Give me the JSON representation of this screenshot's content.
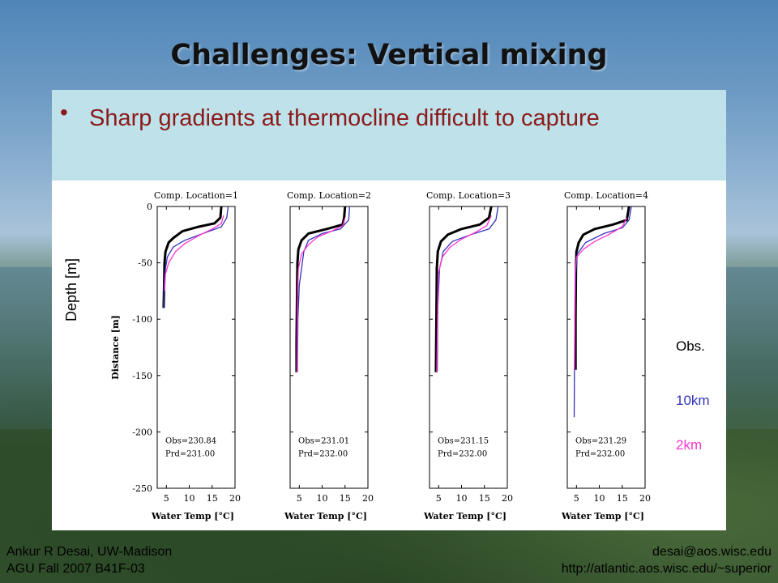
{
  "slide": {
    "title": "Challenges: Vertical mixing",
    "bullet": "Sharp gradients at thermocline difficult to capture",
    "depth_label": "Depth [m]",
    "legend": {
      "obs": "Obs.",
      "km10": "10km",
      "km2": "2km"
    },
    "footer_left": [
      "Ankur R Desai, UW-Madison",
      "AGU Fall 2007 B41F-03"
    ],
    "footer_right": [
      "desai@aos.wisc.edu",
      "http://atlantic.aos.wisc.edu/~superior"
    ]
  },
  "colors": {
    "obs": "#000000",
    "km10": "#3333bb",
    "km2": "#ff33cc",
    "bullet_text": "#8b1a1a",
    "bullet_bg": "#bfe2ea"
  },
  "chart_data": [
    {
      "type": "line",
      "title": "Comp. Location=1",
      "xlabel": "Water Temp [°C]",
      "ylabel": "Distance [m]",
      "xlim": [
        3,
        20
      ],
      "ylim": [
        -250,
        0
      ],
      "xticks": [
        5,
        10,
        15,
        20
      ],
      "yticks": [
        0,
        -50,
        -100,
        -150,
        -200,
        -250
      ],
      "annotations": [
        "Obs=230.84",
        "Prd=231.00"
      ],
      "series": [
        {
          "key": "obs",
          "x": [
            17.0,
            16.8,
            15.5,
            12.0,
            8.5,
            6.5,
            5.5,
            4.8,
            4.6,
            4.5,
            4.4
          ],
          "y": [
            0,
            -10,
            -15,
            -18,
            -22,
            -28,
            -32,
            -40,
            -50,
            -70,
            -90
          ]
        },
        {
          "key": "km10",
          "x": [
            18.5,
            18.2,
            17.0,
            13.0,
            9.0,
            6.5,
            5.2,
            4.8,
            4.5,
            4.4
          ],
          "y": [
            0,
            -10,
            -18,
            -24,
            -30,
            -36,
            -45,
            -55,
            -70,
            -90
          ]
        },
        {
          "key": "km2",
          "x": [
            17.5,
            17.0,
            15.0,
            12.0,
            9.0,
            7.0,
            5.5,
            4.8,
            4.6
          ],
          "y": [
            -8,
            -15,
            -20,
            -26,
            -33,
            -40,
            -50,
            -60,
            -75
          ]
        }
      ]
    },
    {
      "type": "line",
      "title": "Comp. Location=2",
      "xlabel": "Water Temp [°C]",
      "ylabel": "",
      "xlim": [
        3,
        20
      ],
      "ylim": [
        -250,
        0
      ],
      "xticks": [
        5,
        10,
        15,
        20
      ],
      "yticks": [
        0,
        -50,
        -100,
        -150,
        -200,
        -250
      ],
      "annotations": [
        "Obs=231.01",
        "Prd=232.00"
      ],
      "series": [
        {
          "key": "obs",
          "x": [
            15.0,
            14.8,
            14.5,
            11.0,
            7.0,
            5.5,
            4.8,
            4.6,
            4.5,
            4.4,
            4.4
          ],
          "y": [
            0,
            -10,
            -16,
            -20,
            -24,
            -30,
            -38,
            -50,
            -80,
            -120,
            -147
          ]
        },
        {
          "key": "km10",
          "x": [
            16.0,
            15.8,
            14.0,
            10.0,
            7.0,
            6.0,
            5.5,
            5.0,
            4.7,
            4.6
          ],
          "y": [
            0,
            -12,
            -20,
            -24,
            -30,
            -40,
            -55,
            -70,
            -100,
            -147
          ]
        },
        {
          "key": "km2",
          "x": [
            15.0,
            14.5,
            12.0,
            9.0,
            7.0,
            5.5,
            4.8,
            4.6,
            4.5
          ],
          "y": [
            -10,
            -17,
            -22,
            -27,
            -34,
            -42,
            -55,
            -80,
            -147
          ]
        }
      ]
    },
    {
      "type": "line",
      "title": "Comp. Location=3",
      "xlabel": "Water Temp [°C]",
      "ylabel": "",
      "xlim": [
        3,
        20
      ],
      "ylim": [
        -250,
        0
      ],
      "xticks": [
        5,
        10,
        15,
        20
      ],
      "yticks": [
        0,
        -50,
        -100,
        -150,
        -200,
        -250
      ],
      "annotations": [
        "Obs=231.15",
        "Prd=232.00"
      ],
      "series": [
        {
          "key": "obs",
          "x": [
            16.5,
            16.0,
            14.0,
            10.0,
            7.0,
            5.5,
            4.8,
            4.6,
            4.5,
            4.4
          ],
          "y": [
            0,
            -10,
            -16,
            -20,
            -25,
            -31,
            -40,
            -55,
            -100,
            -147
          ]
        },
        {
          "key": "km10",
          "x": [
            18.0,
            17.5,
            16.0,
            12.0,
            8.0,
            6.0,
            5.2,
            4.8,
            4.7
          ],
          "y": [
            0,
            -12,
            -20,
            -25,
            -31,
            -40,
            -55,
            -90,
            -147
          ]
        },
        {
          "key": "km2",
          "x": [
            16.5,
            15.5,
            13.0,
            10.0,
            7.5,
            5.8,
            4.9,
            4.6
          ],
          "y": [
            -8,
            -17,
            -23,
            -29,
            -36,
            -45,
            -60,
            -147
          ]
        }
      ]
    },
    {
      "type": "line",
      "title": "Comp. Location=4",
      "xlabel": "Water Temp [°C]",
      "ylabel": "",
      "xlim": [
        3,
        20
      ],
      "ylim": [
        -250,
        0
      ],
      "xticks": [
        5,
        10,
        15,
        20
      ],
      "yticks": [
        0,
        -50,
        -100,
        -150,
        -200,
        -250
      ],
      "annotations": [
        "Obs=231.29",
        "Prd=232.00"
      ],
      "series": [
        {
          "key": "obs",
          "x": [
            16.5,
            16.0,
            13.0,
            9.0,
            6.5,
            5.5,
            5.0,
            4.9,
            4.8,
            4.8
          ],
          "y": [
            0,
            -12,
            -16,
            -20,
            -25,
            -32,
            -40,
            -55,
            -100,
            -145
          ]
        },
        {
          "key": "km10",
          "x": [
            17.0,
            16.5,
            15.0,
            11.0,
            7.0,
            5.2,
            4.8,
            4.6,
            4.5
          ],
          "y": [
            0,
            -12,
            -19,
            -24,
            -32,
            -42,
            -60,
            -120,
            -187
          ]
        },
        {
          "key": "km2",
          "x": [
            16.0,
            15.0,
            12.0,
            9.0,
            6.5,
            5.0,
            4.7,
            4.6
          ],
          "y": [
            -10,
            -18,
            -25,
            -31,
            -38,
            -45,
            -60,
            -145
          ]
        }
      ]
    }
  ]
}
